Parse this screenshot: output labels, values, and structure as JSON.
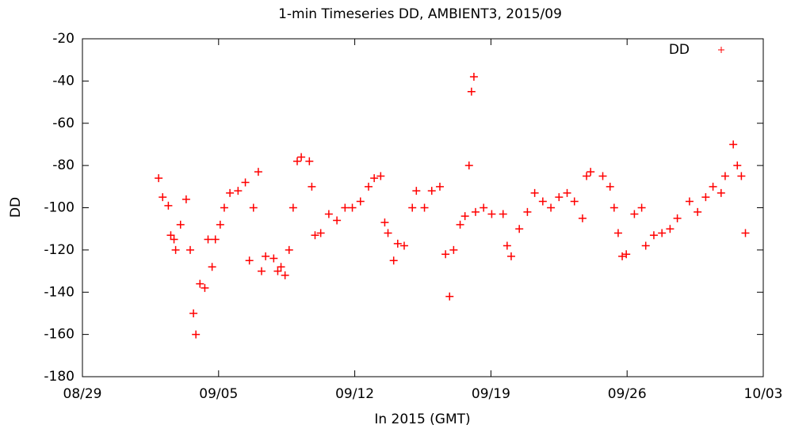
{
  "chart_data": {
    "type": "scatter",
    "title": "1-min Timeseries DD, AMBIENT3, 2015/09",
    "x_label": "In 2015 (GMT)",
    "y_label": "DD",
    "xlim": [
      "2015-08-29T00:00",
      "2015-10-03T00:00"
    ],
    "xticks": [
      {
        "value": "2015-08-29T00:00",
        "label": "08/29"
      },
      {
        "value": "2015-09-05T00:00",
        "label": "09/05"
      },
      {
        "value": "2015-09-12T00:00",
        "label": "09/12"
      },
      {
        "value": "2015-09-19T00:00",
        "label": "09/19"
      },
      {
        "value": "2015-09-26T00:00",
        "label": "09/26"
      },
      {
        "value": "2015-10-03T00:00",
        "label": "10/03"
      }
    ],
    "ylim": [
      -180,
      -20
    ],
    "yticks": [
      -180,
      -160,
      -140,
      -120,
      -100,
      -80,
      -60,
      -40,
      -20
    ],
    "legend": "top-right",
    "series": [
      {
        "name": "DD",
        "color": "#ff0000",
        "x": [
          "2015-09-01T22:00",
          "2015-09-02T03:00",
          "2015-09-02T10:00",
          "2015-09-02T13:00",
          "2015-09-02T17:00",
          "2015-09-02T19:00",
          "2015-09-03T01:00",
          "2015-09-03T08:00",
          "2015-09-03T13:00",
          "2015-09-03T17:00",
          "2015-09-03T20:00",
          "2015-09-04T01:00",
          "2015-09-04T07:00",
          "2015-09-04T11:00",
          "2015-09-04T16:00",
          "2015-09-04T20:00",
          "2015-09-05T02:00",
          "2015-09-05T07:00",
          "2015-09-05T14:00",
          "2015-09-06T00:00",
          "2015-09-06T09:00",
          "2015-09-06T14:00",
          "2015-09-06T19:00",
          "2015-09-07T01:00",
          "2015-09-07T05:00",
          "2015-09-07T10:00",
          "2015-09-07T20:00",
          "2015-09-08T01:00",
          "2015-09-08T05:00",
          "2015-09-08T10:00",
          "2015-09-08T15:00",
          "2015-09-08T20:00",
          "2015-09-09T01:00",
          "2015-09-09T06:00",
          "2015-09-09T16:00",
          "2015-09-09T19:00",
          "2015-09-09T23:00",
          "2015-09-10T06:00",
          "2015-09-10T16:00",
          "2015-09-11T02:00",
          "2015-09-11T12:00",
          "2015-09-11T21:00",
          "2015-09-12T07:00",
          "2015-09-12T17:00",
          "2015-09-13T00:00",
          "2015-09-13T08:00",
          "2015-09-13T13:00",
          "2015-09-13T17:00",
          "2015-09-14T00:00",
          "2015-09-14T05:00",
          "2015-09-14T13:00",
          "2015-09-14T23:00",
          "2015-09-15T04:00",
          "2015-09-15T14:00",
          "2015-09-15T23:00",
          "2015-09-16T09:00",
          "2015-09-16T16:00",
          "2015-09-16T21:00",
          "2015-09-17T02:00",
          "2015-09-17T10:00",
          "2015-09-17T16:00",
          "2015-09-17T21:00",
          "2015-09-18T00:00",
          "2015-09-18T03:00",
          "2015-09-18T05:00",
          "2015-09-18T15:00",
          "2015-09-19T01:00",
          "2015-09-19T15:00",
          "2015-09-19T20:00",
          "2015-09-20T01:00",
          "2015-09-20T11:00",
          "2015-09-20T21:00",
          "2015-09-21T06:00",
          "2015-09-21T16:00",
          "2015-09-22T02:00",
          "2015-09-22T12:00",
          "2015-09-22T22:00",
          "2015-09-23T07:00",
          "2015-09-23T17:00",
          "2015-09-23T22:00",
          "2015-09-24T03:00",
          "2015-09-24T18:00",
          "2015-09-25T03:00",
          "2015-09-25T08:00",
          "2015-09-25T13:00",
          "2015-09-25T18:00",
          "2015-09-25T23:00",
          "2015-09-26T09:00",
          "2015-09-26T18:00",
          "2015-09-26T23:00",
          "2015-09-27T09:00",
          "2015-09-27T19:00",
          "2015-09-28T05:00",
          "2015-09-28T14:00",
          "2015-09-29T05:00",
          "2015-09-29T15:00",
          "2015-09-30T01:00",
          "2015-09-30T10:00",
          "2015-09-30T20:00",
          "2015-10-01T01:00",
          "2015-10-01T11:00",
          "2015-10-01T16:00",
          "2015-10-01T21:00",
          "2015-10-02T02:00"
        ],
        "values": [
          -86,
          -95,
          -99,
          -113,
          -115,
          -120,
          -108,
          -96,
          -120,
          -150,
          -160,
          -136,
          -138,
          -115,
          -128,
          -115,
          -108,
          -100,
          -93,
          -92,
          -88,
          -125,
          -100,
          -83,
          -130,
          -123,
          -124,
          -130,
          -128,
          -132,
          -120,
          -100,
          -78,
          -76,
          -78,
          -90,
          -113,
          -112,
          -103,
          -106,
          -100,
          -100,
          -97,
          -90,
          -86,
          -85,
          -107,
          -112,
          -125,
          -117,
          -118,
          -100,
          -92,
          -100,
          -92,
          -90,
          -122,
          -142,
          -120,
          -108,
          -104,
          -80,
          -45,
          -38,
          -102,
          -100,
          -103,
          -103,
          -118,
          -123,
          -110,
          -102,
          -93,
          -97,
          -100,
          -95,
          -93,
          -97,
          -105,
          -85,
          -83,
          -85,
          -90,
          -100,
          -112,
          -123,
          -122,
          -103,
          -100,
          -118,
          -113,
          -112,
          -110,
          -105,
          -97,
          -102,
          -95,
          -90,
          -93,
          -85,
          -70,
          -80,
          -85,
          -112
        ]
      }
    ]
  }
}
